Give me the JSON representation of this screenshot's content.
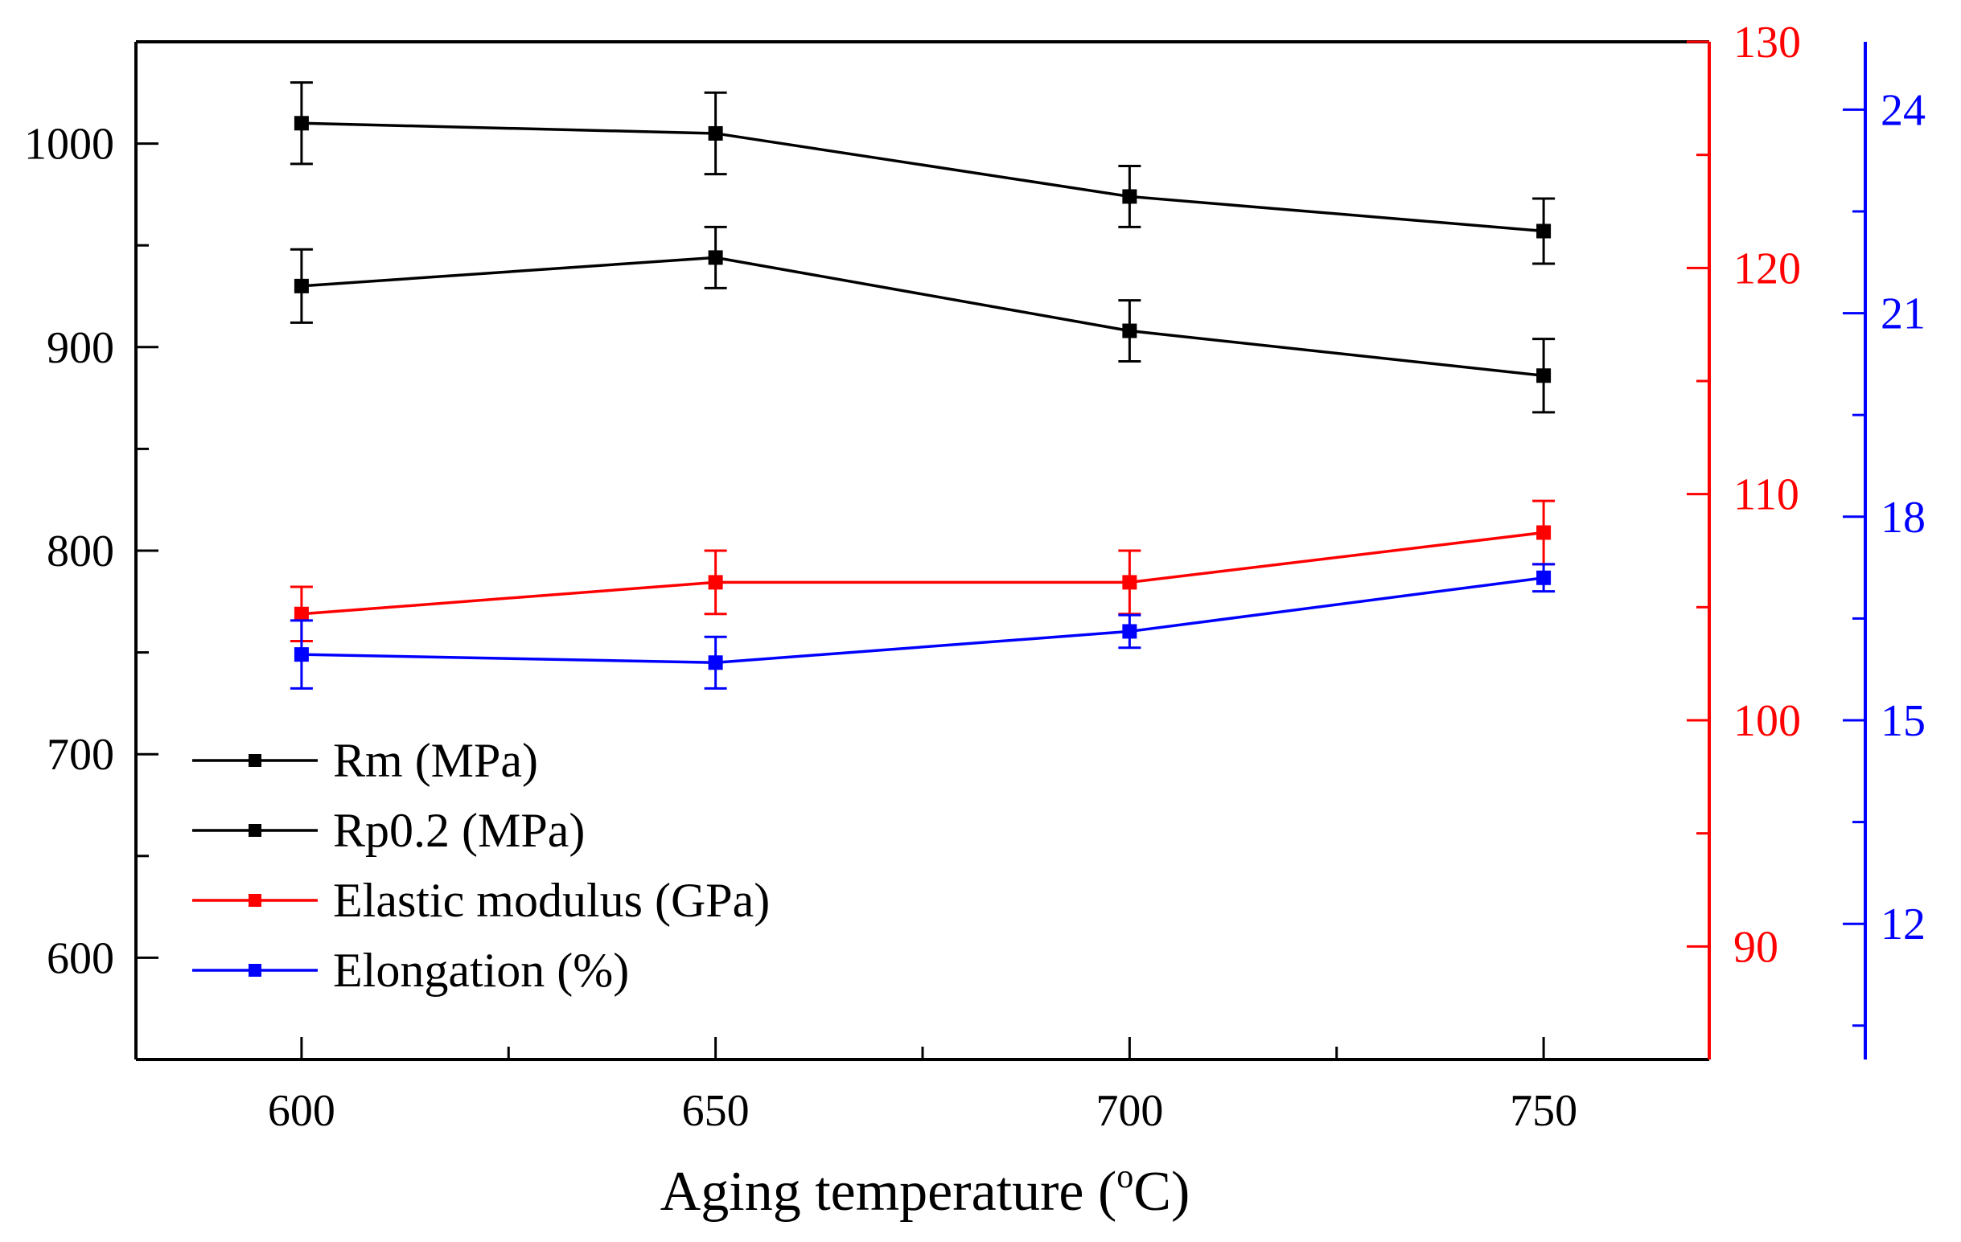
{
  "chart_data": {
    "type": "line",
    "title": "",
    "xlabel": "Aging temperature (",
    "xlabel_sup": "o",
    "xlabel_tail": "C)",
    "x": [
      600,
      650,
      700,
      750
    ],
    "xlim": [
      580,
      770
    ],
    "xticks": [
      "600",
      "650",
      "700",
      "750"
    ],
    "axes": {
      "left": {
        "lim": [
          550,
          1050
        ],
        "ticks": [
          "600",
          "700",
          "800",
          "900",
          "1000"
        ],
        "color": "#000000"
      },
      "right_red": {
        "lim": [
          85,
          130
        ],
        "ticks": [
          "90",
          "100",
          "110",
          "120",
          "130"
        ],
        "color": "#ff0000"
      },
      "right_blue": {
        "lim": [
          10,
          25
        ],
        "ticks": [
          "12",
          "15",
          "18",
          "21",
          "24"
        ],
        "color": "#0000ff"
      }
    },
    "series": [
      {
        "name": "Rm (MPa)",
        "axis": "left",
        "color": "#000000",
        "values": [
          1010,
          1005,
          974,
          957
        ],
        "errors": [
          20,
          20,
          15,
          16
        ]
      },
      {
        "name": "Rp0.2 (MPa)",
        "axis": "left",
        "color": "#000000",
        "values": [
          930,
          944,
          908,
          886
        ],
        "errors": [
          18,
          15,
          15,
          18
        ]
      },
      {
        "name": "Elastic modulus (GPa)",
        "axis": "right_red",
        "color": "#ff0000",
        "values": [
          104.7,
          106.1,
          106.1,
          108.3
        ],
        "errors": [
          1.2,
          1.4,
          1.4,
          1.4
        ]
      },
      {
        "name": "Elongation (%)",
        "axis": "right_blue",
        "color": "#0000ff",
        "values": [
          15.97,
          15.85,
          16.31,
          17.1
        ],
        "errors": [
          0.5,
          0.38,
          0.24,
          0.2
        ]
      }
    ],
    "legend_position": "bottom-left",
    "grid": false
  }
}
